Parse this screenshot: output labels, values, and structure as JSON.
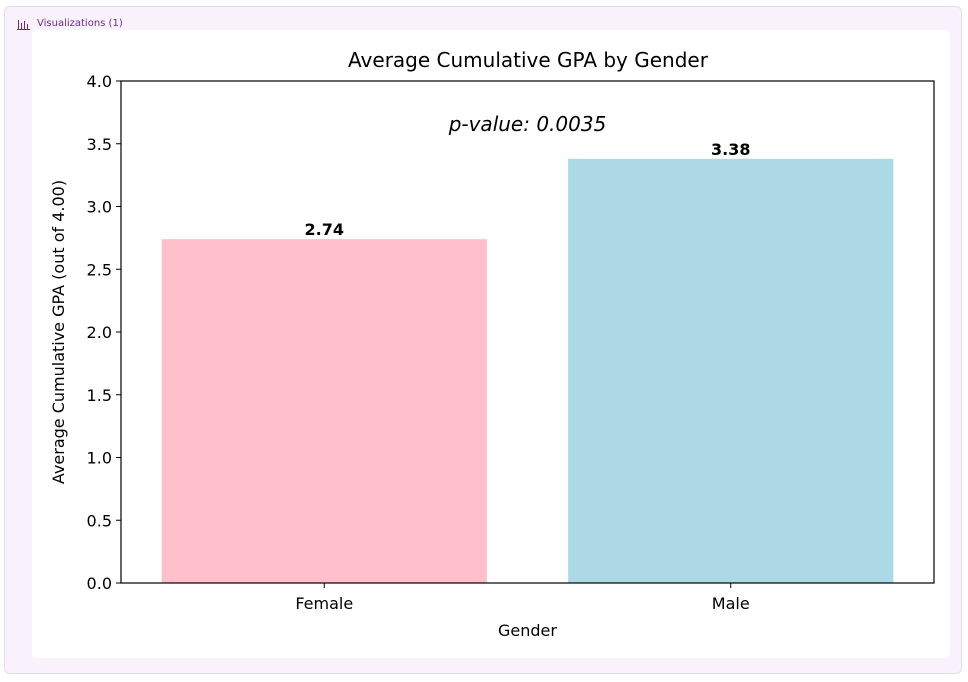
{
  "panel": {
    "title": "Visualizations (1)",
    "icon": "bar-chart-icon",
    "accent_color": "#6a2c8a"
  },
  "chart_data": {
    "type": "bar",
    "title": "Average Cumulative GPA by Gender",
    "xlabel": "Gender",
    "ylabel": "Average Cumulative GPA (out of 4.00)",
    "categories": [
      "Female",
      "Male"
    ],
    "values": [
      2.74,
      3.38
    ],
    "value_labels": [
      "2.74",
      "3.38"
    ],
    "colors": [
      "#ffc0cb",
      "#add8e6"
    ],
    "ylim": [
      0,
      4.0
    ],
    "yticks": [
      0.0,
      0.5,
      1.0,
      1.5,
      2.0,
      2.5,
      3.0,
      3.5,
      4.0
    ],
    "ytick_labels": [
      "0.0",
      "0.5",
      "1.0",
      "1.5",
      "2.0",
      "2.5",
      "3.0",
      "3.5",
      "4.0"
    ],
    "annotation": "p-value: 0.0035",
    "grid": false,
    "legend": "none"
  }
}
